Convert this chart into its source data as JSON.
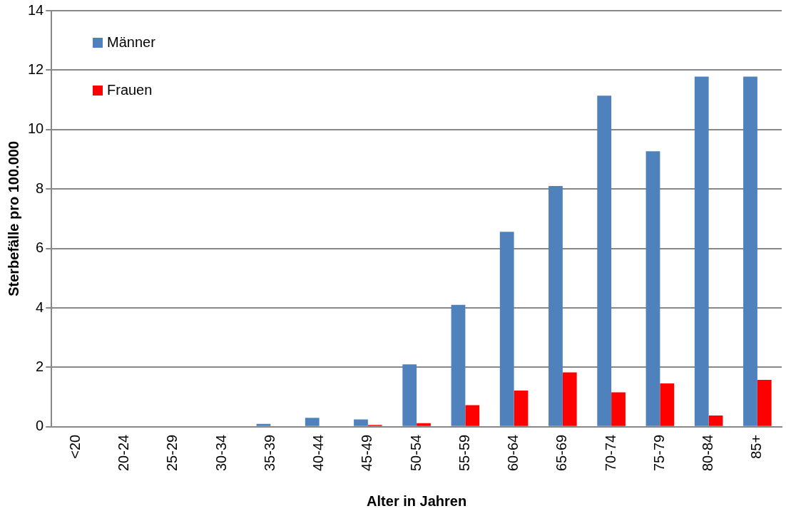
{
  "chart_data": {
    "type": "bar",
    "xlabel": "Alter in Jahren",
    "ylabel": "Sterbefälle pro 100.000",
    "categories": [
      "<20",
      "20-24",
      "25-29",
      "30-34",
      "35-39",
      "40-44",
      "45-49",
      "50-54",
      "55-59",
      "60-64",
      "65-69",
      "70-74",
      "75-79",
      "80-84",
      "85+"
    ],
    "series": [
      {
        "name": "Männer",
        "color": "#4f81bd",
        "values": [
          0,
          0,
          0,
          0,
          0.1,
          0.3,
          0.25,
          2.1,
          4.1,
          6.56,
          8.1,
          11.14,
          9.27,
          11.78,
          11.78
        ]
      },
      {
        "name": "Frauen",
        "color": "#ff0000",
        "values": [
          0,
          0,
          0,
          0,
          0,
          0,
          0.06,
          0.12,
          0.73,
          1.22,
          1.83,
          1.16,
          1.46,
          0.38,
          1.58
        ]
      }
    ],
    "ylim": [
      0,
      14
    ],
    "yticks": [
      0,
      2,
      4,
      6,
      8,
      10,
      12,
      14
    ],
    "grid": "y",
    "legend": "top left"
  }
}
